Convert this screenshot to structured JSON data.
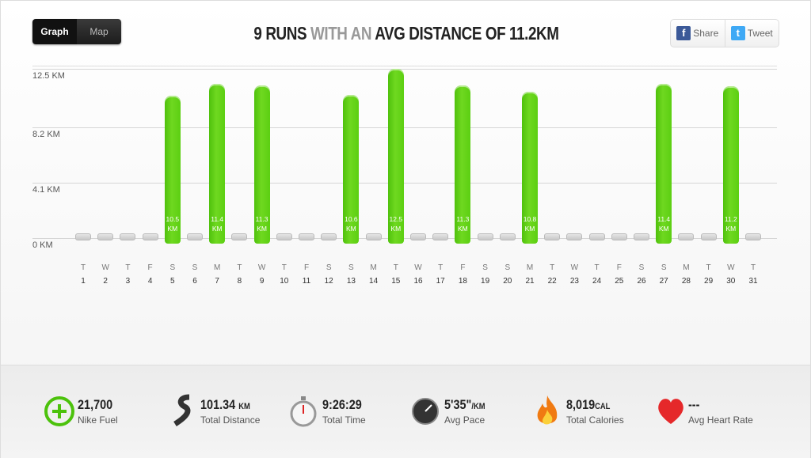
{
  "view_toggle": [
    "Graph",
    "Map"
  ],
  "social": [
    "Share",
    "Tweet"
  ],
  "chart_data": {
    "type": "bar",
    "title_parts": [
      "9 RUNS",
      "WITH AN",
      "AVG DISTANCE OF 11.2KM"
    ],
    "categories": [
      "1",
      "2",
      "3",
      "4",
      "5",
      "6",
      "7",
      "8",
      "9",
      "10",
      "11",
      "12",
      "13",
      "14",
      "15",
      "16",
      "17",
      "18",
      "19",
      "20",
      "21",
      "22",
      "23",
      "24",
      "25",
      "26",
      "27",
      "28",
      "29",
      "30",
      "31"
    ],
    "weekdays": [
      "T",
      "W",
      "T",
      "F",
      "S",
      "S",
      "M",
      "T",
      "W",
      "T",
      "F",
      "S",
      "S",
      "M",
      "T",
      "W",
      "T",
      "F",
      "S",
      "S",
      "M",
      "T",
      "W",
      "T",
      "F",
      "S",
      "S",
      "M",
      "T",
      "W",
      "T"
    ],
    "values": [
      null,
      null,
      null,
      null,
      10.5,
      null,
      11.4,
      null,
      11.3,
      null,
      null,
      null,
      10.6,
      null,
      12.5,
      null,
      null,
      11.3,
      null,
      null,
      10.8,
      null,
      null,
      null,
      null,
      null,
      11.4,
      null,
      null,
      11.2,
      null
    ],
    "value_labels": [
      null,
      null,
      null,
      null,
      "10.5 KM",
      null,
      "11.4 KM",
      null,
      "11.3 KM",
      null,
      null,
      null,
      "10.6 KM",
      null,
      "12.5 KM",
      null,
      null,
      "11.3 KM",
      null,
      null,
      "10.8 KM",
      null,
      null,
      null,
      null,
      null,
      "11.4 KM",
      null,
      null,
      "11.2 KM",
      null
    ],
    "color": "#6fd820",
    "ylim": [
      0,
      12.5
    ],
    "yticks": [
      {
        "value": 0,
        "label": "0 KM"
      },
      {
        "value": 4.1,
        "label": "4.1 KM"
      },
      {
        "value": 8.2,
        "label": "8.2 KM"
      },
      {
        "value": 12.5,
        "label": "12.5 KM"
      }
    ],
    "grid": true
  },
  "stats": [
    {
      "value": "21,700",
      "label": "Nike Fuel"
    },
    {
      "value": "101.34",
      "unit": "KM",
      "label": "Total Distance"
    },
    {
      "value": "9:26:29",
      "label": "Total Time"
    },
    {
      "value": "5'35\"",
      "unit": "/KM",
      "label": "Avg Pace"
    },
    {
      "value": "8,019",
      "unit": "CAL",
      "label": "Total Calories"
    },
    {
      "value": "---",
      "label": "Avg Heart Rate"
    }
  ]
}
